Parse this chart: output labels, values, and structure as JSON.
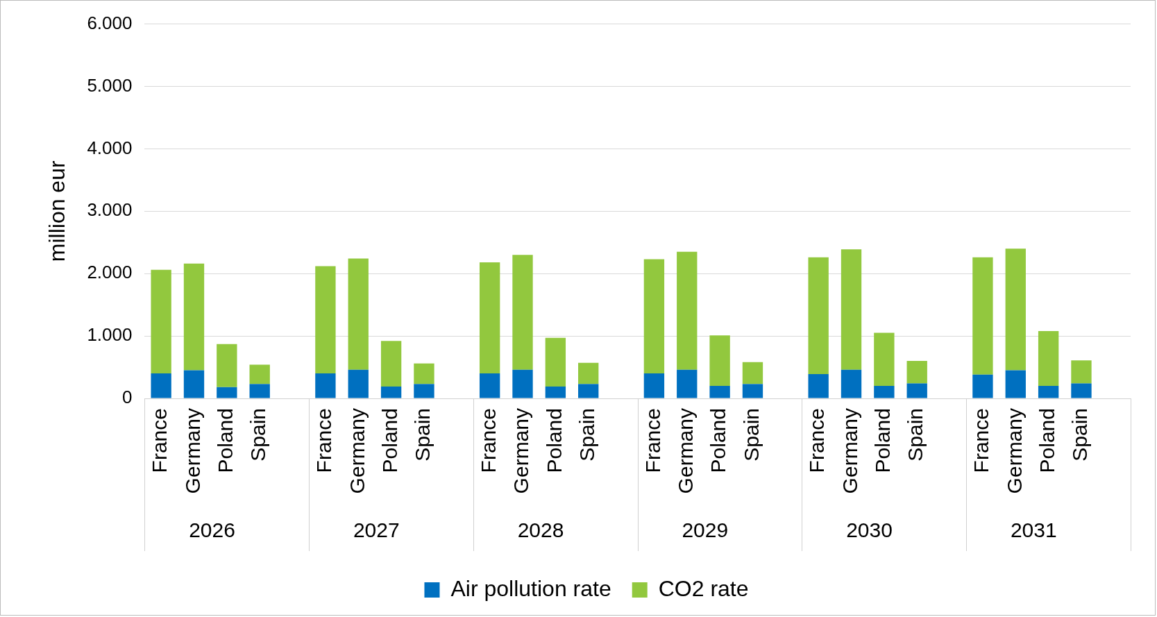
{
  "chart_data": {
    "type": "bar",
    "stacked": true,
    "ylabel": "million eur",
    "categories": [
      "France",
      "Germany",
      "Poland",
      "Spain",
      null,
      "France",
      "Germany",
      "Poland",
      "Spain",
      null,
      "France",
      "Germany",
      "Poland",
      "Spain",
      null,
      "France",
      "Germany",
      "Poland",
      "Spain",
      null,
      "France",
      "Germany",
      "Poland",
      "Spain",
      null,
      "France",
      "Germany",
      "Poland",
      "Spain",
      null
    ],
    "series": [
      {
        "name": "Air pollution rate",
        "color": "#0070c0",
        "values": [
          400,
          450,
          180,
          230,
          null,
          400,
          460,
          190,
          230,
          null,
          400,
          460,
          190,
          230,
          null,
          400,
          460,
          200,
          230,
          null,
          390,
          460,
          200,
          240,
          null,
          380,
          450,
          200,
          240,
          null
        ]
      },
      {
        "name": "CO2 rate",
        "color": "#92c83e",
        "values": [
          1660,
          1710,
          690,
          310,
          null,
          1720,
          1780,
          730,
          330,
          null,
          1780,
          1840,
          780,
          340,
          null,
          1830,
          1890,
          810,
          350,
          null,
          1870,
          1930,
          850,
          360,
          null,
          1880,
          1950,
          880,
          370,
          null
        ]
      }
    ],
    "ylim": [
      0,
      6000
    ],
    "yticks": [
      {
        "value": 0,
        "label": "0"
      },
      {
        "value": 1000,
        "label": "1.000"
      },
      {
        "value": 2000,
        "label": "2.000"
      },
      {
        "value": 3000,
        "label": "3.000"
      },
      {
        "value": 4000,
        "label": "4.000"
      },
      {
        "value": 5000,
        "label": "5.000"
      },
      {
        "value": 6000,
        "label": "6.000"
      }
    ],
    "grid": "y",
    "legend": "bottom",
    "annotations": [
      "2026",
      "2027",
      "2028",
      "2029",
      "2030",
      "2031"
    ]
  }
}
